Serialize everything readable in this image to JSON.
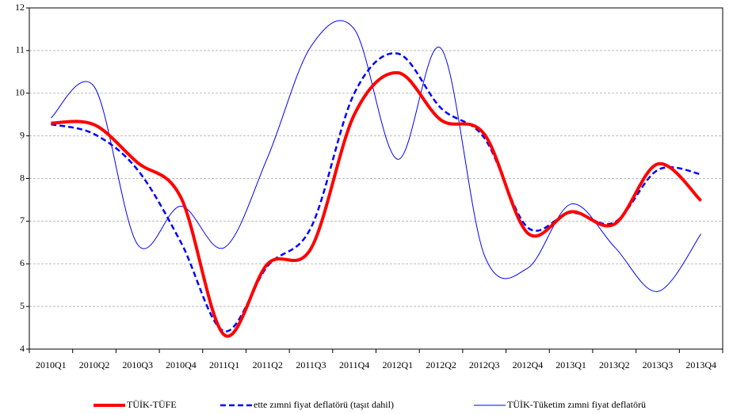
{
  "chart_data": {
    "type": "line",
    "categories": [
      "2010Q1",
      "2010Q2",
      "2010Q3",
      "2010Q4",
      "2011Q1",
      "2011Q2",
      "2011Q3",
      "2011Q4",
      "2012Q1",
      "2012Q2",
      "2012Q3",
      "2012Q4",
      "2013Q1",
      "2013Q2",
      "2013Q3",
      "2013Q4"
    ],
    "series": [
      {
        "name": "TÜİK-TÜFE",
        "color": "#ff0000",
        "line_width": 4,
        "dash": false,
        "values": [
          9.3,
          9.26,
          8.37,
          7.55,
          4.33,
          6.0,
          6.36,
          9.5,
          10.48,
          9.37,
          9.04,
          6.72,
          7.22,
          6.93,
          8.34,
          7.48
        ]
      },
      {
        "name": "ette zımni fiyat deflatörü (taşıt dahil)",
        "color": "#0000ff",
        "line_width": 2.5,
        "dash": true,
        "values": [
          9.27,
          9.04,
          8.2,
          6.5,
          4.42,
          5.95,
          6.85,
          10.0,
          10.93,
          9.65,
          8.95,
          6.85,
          7.2,
          6.97,
          8.2,
          8.1
        ]
      },
      {
        "name": "TÜİK-Tüketim zımni fiyat deflatörü",
        "color": "#0000ff",
        "line_width": 1,
        "dash": false,
        "values": [
          9.42,
          10.15,
          6.45,
          7.35,
          6.38,
          8.5,
          11.1,
          11.5,
          8.45,
          11.05,
          6.2,
          5.9,
          7.4,
          6.4,
          5.35,
          6.7
        ]
      }
    ],
    "ylim": [
      4,
      12
    ],
    "yticks": [
      4,
      5,
      6,
      7,
      8,
      9,
      10,
      11,
      12
    ],
    "grid": true,
    "legend": "bottom"
  }
}
